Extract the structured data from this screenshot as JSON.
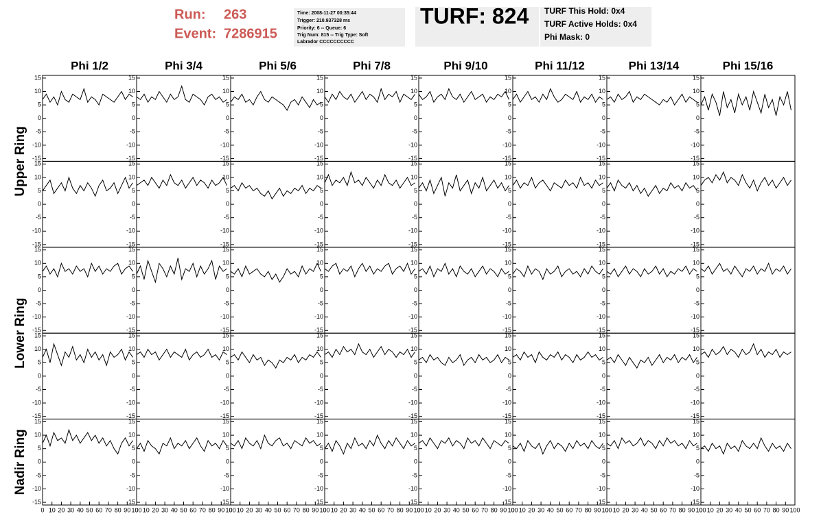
{
  "header": {
    "run_label": "Run:",
    "run": "263",
    "event_label": "Event:",
    "event": "7286915",
    "info": [
      "Time: 2008-11-27 00:35:44",
      "Trigger: 210.937328 ms",
      "Priority: 6 -- Queue: 6",
      "Trig Num: 815 -- Trig Type: Soft",
      "Labrador CCCCCCCCCC"
    ],
    "turf": "TURF: 824",
    "turf_info": [
      "TURF This Hold: 0x4",
      "TURF Active Holds: 0x4",
      "Phi Mask: 0"
    ]
  },
  "chart_data": {
    "type": "line",
    "color": "#000000",
    "column_labels": [
      "Phi 1/2",
      "Phi 3/4",
      "Phi 5/6",
      "Phi 7/8",
      "Phi 9/10",
      "Phi 11/12",
      "Phi 13/14",
      "Phi 15/16"
    ],
    "row_labels": [
      "Upper Ring",
      "Lower Ring",
      "Nadir Ring"
    ],
    "x": [
      0,
      4,
      8,
      12,
      16,
      20,
      24,
      28,
      32,
      36,
      40,
      44,
      48,
      52,
      56,
      60,
      64,
      68,
      72,
      76,
      80,
      84,
      88,
      92,
      96
    ],
    "xlim": [
      0,
      100
    ],
    "xticks": [
      0,
      10,
      20,
      30,
      40,
      50,
      60,
      70,
      80,
      90,
      100
    ],
    "ylim": [
      -16,
      16
    ],
    "yticks": [
      -15,
      -10,
      -5,
      0,
      5,
      10,
      15
    ],
    "panels": [
      [
        7,
        9,
        6,
        8,
        5,
        10,
        7,
        6,
        9,
        8,
        7,
        11,
        6,
        8,
        7,
        5,
        9,
        8,
        7,
        6,
        8,
        10,
        7,
        9,
        8
      ],
      [
        8,
        7,
        9,
        6,
        8,
        7,
        10,
        8,
        6,
        9,
        7,
        8,
        12,
        7,
        6,
        9,
        8,
        7,
        5,
        8,
        9,
        7,
        8,
        6,
        7
      ],
      [
        6,
        8,
        7,
        9,
        6,
        7,
        5,
        8,
        10,
        7,
        6,
        8,
        7,
        6,
        5,
        3,
        6,
        7,
        5,
        8,
        6,
        4,
        7,
        5,
        6
      ],
      [
        8,
        6,
        9,
        7,
        10,
        8,
        7,
        9,
        6,
        8,
        10,
        7,
        9,
        8,
        6,
        11,
        7,
        9,
        8,
        10,
        6,
        9,
        8,
        7,
        9
      ],
      [
        9,
        7,
        8,
        10,
        6,
        8,
        9,
        7,
        11,
        8,
        7,
        9,
        6,
        8,
        10,
        7,
        8,
        9,
        6,
        8,
        7,
        9,
        8,
        10,
        7
      ],
      [
        7,
        9,
        6,
        8,
        10,
        7,
        8,
        6,
        9,
        7,
        11,
        8,
        6,
        7,
        9,
        8,
        7,
        10,
        6,
        8,
        7,
        9,
        6,
        8,
        7
      ],
      [
        7,
        8,
        6,
        9,
        7,
        8,
        10,
        6,
        8,
        7,
        9,
        8,
        7,
        6,
        5,
        7,
        6,
        8,
        5,
        7,
        9,
        6,
        8,
        7,
        6
      ],
      [
        5,
        8,
        3,
        9,
        6,
        1,
        10,
        4,
        7,
        2,
        9,
        5,
        8,
        3,
        10,
        6,
        2,
        9,
        4,
        7,
        1,
        8,
        5,
        10,
        3
      ],
      [
        5,
        7,
        9,
        4,
        6,
        8,
        5,
        10,
        6,
        4,
        7,
        5,
        8,
        6,
        3,
        7,
        9,
        5,
        6,
        8,
        4,
        7,
        10,
        6,
        8
      ],
      [
        7,
        8,
        9,
        7,
        10,
        8,
        6,
        9,
        7,
        11,
        8,
        7,
        9,
        6,
        8,
        10,
        7,
        9,
        8,
        6,
        9,
        7,
        8,
        10,
        7
      ],
      [
        6,
        7,
        5,
        8,
        6,
        7,
        5,
        6,
        4,
        3,
        5,
        2,
        4,
        6,
        3,
        5,
        4,
        6,
        5,
        7,
        4,
        6,
        5,
        7,
        6
      ],
      [
        8,
        11,
        7,
        9,
        8,
        10,
        7,
        12,
        8,
        9,
        7,
        10,
        8,
        6,
        9,
        7,
        11,
        8,
        7,
        9,
        6,
        8,
        10,
        7,
        8
      ],
      [
        6,
        8,
        5,
        9,
        4,
        7,
        10,
        3,
        8,
        6,
        11,
        5,
        7,
        9,
        4,
        8,
        6,
        10,
        5,
        7,
        9,
        6,
        8,
        5,
        7
      ],
      [
        7,
        9,
        6,
        8,
        7,
        10,
        6,
        8,
        9,
        7,
        5,
        8,
        7,
        6,
        9,
        7,
        8,
        6,
        10,
        7,
        8,
        6,
        9,
        7,
        8
      ],
      [
        6,
        8,
        5,
        9,
        7,
        6,
        8,
        5,
        7,
        4,
        6,
        3,
        5,
        7,
        4,
        6,
        5,
        8,
        6,
        7,
        5,
        8,
        6,
        7,
        5
      ],
      [
        7,
        9,
        10,
        8,
        11,
        9,
        12,
        8,
        10,
        9,
        7,
        11,
        8,
        6,
        9,
        5,
        8,
        10,
        7,
        9,
        6,
        8,
        10,
        7,
        9
      ],
      [
        7,
        9,
        6,
        8,
        5,
        10,
        7,
        8,
        6,
        9,
        7,
        8,
        5,
        10,
        7,
        9,
        6,
        8,
        7,
        9,
        10,
        6,
        8,
        9,
        7
      ],
      [
        6,
        9,
        4,
        11,
        7,
        3,
        10,
        8,
        5,
        9,
        6,
        12,
        4,
        8,
        7,
        10,
        5,
        9,
        6,
        8,
        11,
        4,
        9,
        7,
        8
      ],
      [
        7,
        6,
        8,
        5,
        9,
        6,
        7,
        8,
        6,
        5,
        7,
        4,
        6,
        3,
        5,
        8,
        6,
        7,
        5,
        9,
        6,
        8,
        7,
        10,
        7
      ],
      [
        8,
        7,
        9,
        10,
        6,
        8,
        7,
        9,
        5,
        8,
        10,
        7,
        9,
        6,
        8,
        7,
        9,
        10,
        6,
        8,
        9,
        7,
        10,
        6,
        8
      ],
      [
        7,
        8,
        6,
        9,
        5,
        8,
        7,
        10,
        6,
        8,
        5,
        9,
        7,
        6,
        8,
        5,
        7,
        9,
        6,
        8,
        7,
        5,
        8,
        6,
        7
      ],
      [
        6,
        8,
        7,
        5,
        9,
        6,
        8,
        7,
        4,
        8,
        6,
        7,
        9,
        5,
        7,
        8,
        6,
        7,
        5,
        8,
        6,
        9,
        7,
        6,
        8
      ],
      [
        7,
        6,
        8,
        5,
        7,
        9,
        6,
        8,
        7,
        5,
        8,
        6,
        7,
        9,
        6,
        8,
        5,
        7,
        6,
        8,
        7,
        9,
        6,
        8,
        7
      ],
      [
        8,
        7,
        9,
        6,
        8,
        10,
        7,
        8,
        6,
        9,
        7,
        5,
        8,
        7,
        9,
        6,
        8,
        7,
        10,
        6,
        8,
        7,
        9,
        6,
        8
      ],
      [
        7,
        10,
        5,
        12,
        8,
        4,
        9,
        7,
        11,
        6,
        8,
        5,
        10,
        7,
        9,
        6,
        8,
        4,
        9,
        7,
        8,
        10,
        6,
        9,
        7
      ],
      [
        8,
        9,
        7,
        10,
        8,
        9,
        6,
        8,
        10,
        7,
        9,
        8,
        7,
        10,
        6,
        8,
        9,
        7,
        8,
        10,
        7,
        8,
        6,
        9,
        8
      ],
      [
        7,
        8,
        6,
        9,
        7,
        5,
        8,
        6,
        7,
        4,
        6,
        5,
        3,
        6,
        5,
        7,
        6,
        8,
        5,
        7,
        6,
        8,
        7,
        9,
        7
      ],
      [
        8,
        9,
        7,
        10,
        8,
        11,
        9,
        10,
        8,
        12,
        9,
        8,
        10,
        7,
        9,
        11,
        8,
        10,
        9,
        7,
        9,
        8,
        10,
        7,
        9
      ],
      [
        6,
        7,
        5,
        8,
        6,
        7,
        5,
        4,
        7,
        5,
        6,
        8,
        4,
        6,
        7,
        5,
        8,
        6,
        7,
        5,
        6,
        8,
        5,
        7,
        6
      ],
      [
        7,
        8,
        6,
        9,
        7,
        8,
        5,
        9,
        7,
        6,
        8,
        7,
        9,
        6,
        8,
        7,
        5,
        8,
        6,
        7,
        9,
        7,
        8,
        6,
        7
      ],
      [
        6,
        7,
        5,
        8,
        6,
        4,
        7,
        5,
        3,
        6,
        5,
        7,
        4,
        6,
        8,
        5,
        7,
        6,
        8,
        5,
        7,
        6,
        8,
        5,
        7
      ],
      [
        8,
        9,
        7,
        10,
        8,
        9,
        11,
        8,
        10,
        9,
        7,
        10,
        8,
        9,
        12,
        8,
        10,
        7,
        9,
        8,
        10,
        7,
        9,
        8,
        9
      ],
      [
        7,
        10,
        6,
        11,
        8,
        9,
        7,
        12,
        8,
        10,
        7,
        9,
        11,
        8,
        10,
        7,
        9,
        6,
        8,
        5,
        3,
        7,
        9,
        6,
        8
      ],
      [
        5,
        7,
        4,
        8,
        6,
        5,
        3,
        7,
        6,
        9,
        5,
        7,
        6,
        8,
        5,
        7,
        9,
        6,
        4,
        8,
        6,
        7,
        5,
        8,
        6
      ],
      [
        7,
        6,
        8,
        5,
        9,
        7,
        6,
        8,
        5,
        10,
        7,
        6,
        8,
        9,
        6,
        7,
        5,
        8,
        7,
        6,
        9,
        7,
        8,
        6,
        7
      ],
      [
        5,
        7,
        4,
        8,
        6,
        3,
        7,
        5,
        9,
        6,
        7,
        5,
        8,
        6,
        10,
        7,
        5,
        8,
        6,
        9,
        7,
        5,
        8,
        6,
        7
      ],
      [
        7,
        8,
        6,
        9,
        7,
        5,
        8,
        7,
        9,
        6,
        8,
        7,
        5,
        9,
        7,
        8,
        6,
        9,
        7,
        5,
        8,
        7,
        6,
        8,
        7
      ],
      [
        6,
        5,
        7,
        4,
        8,
        6,
        5,
        7,
        3,
        6,
        8,
        5,
        7,
        6,
        4,
        7,
        5,
        8,
        6,
        7,
        5,
        8,
        6,
        5,
        7
      ],
      [
        7,
        6,
        8,
        5,
        9,
        7,
        8,
        6,
        7,
        9,
        6,
        8,
        7,
        5,
        8,
        6,
        9,
        7,
        8,
        6,
        7,
        5,
        8,
        6,
        7
      ],
      [
        5,
        6,
        4,
        7,
        5,
        6,
        3,
        7,
        5,
        6,
        4,
        8,
        6,
        5,
        7,
        5,
        9,
        6,
        4,
        7,
        5,
        6,
        4,
        7,
        5
      ]
    ]
  }
}
